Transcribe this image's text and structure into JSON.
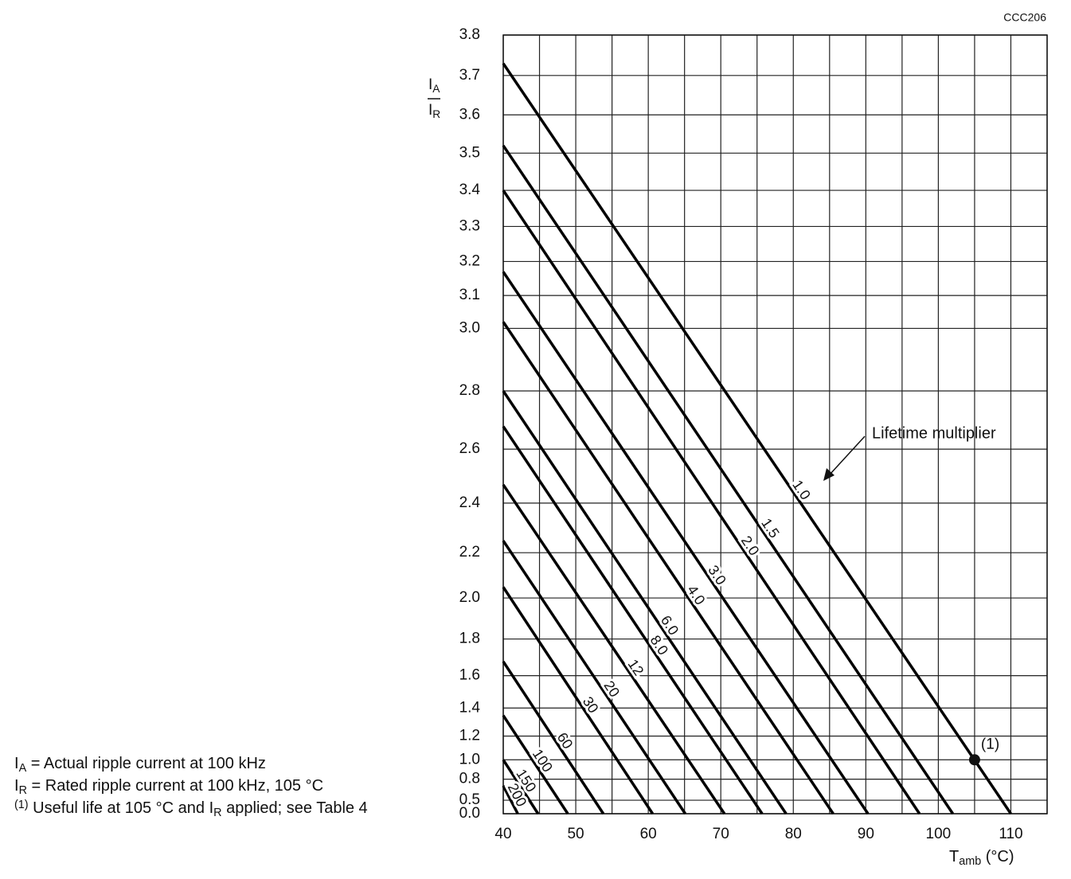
{
  "chart_data": {
    "type": "line",
    "code": "CCC206",
    "y_label": {
      "main": "I",
      "num_sub": "A",
      "den": "I",
      "den_sub": "R"
    },
    "x_label": {
      "main": "T",
      "sub": "amb",
      "unit": " (°C)"
    },
    "yscale": "squared",
    "xlim": [
      40,
      115
    ],
    "ylim": [
      0,
      3.8
    ],
    "xticks": [
      40,
      50,
      60,
      70,
      80,
      90,
      100,
      110
    ],
    "x_minor_grid": [
      45,
      55,
      65,
      75,
      85,
      95,
      105,
      115
    ],
    "yticks": [
      {
        "value": 0,
        "label": "0.0"
      },
      0.5,
      0.8,
      {
        "value": 1,
        "label": "1.0"
      },
      1.2,
      1.4,
      1.6,
      1.8,
      {
        "value": 2,
        "label": "2.0"
      },
      2.2,
      2.4,
      2.6,
      2.8,
      {
        "value": 3,
        "label": "3.0"
      },
      3.1,
      3.2,
      3.3,
      3.4,
      3.5,
      3.6,
      3.7,
      3.8
    ],
    "grid": true,
    "line_color": "#000000",
    "legend_title": "Lifetime multiplier",
    "series": [
      {
        "name": "1.0",
        "x": [
          40,
          110
        ],
        "values": [
          3.73,
          0
        ]
      },
      {
        "name": "1.5",
        "x": [
          40,
          102
        ],
        "values": [
          3.52,
          0
        ]
      },
      {
        "name": "2.0",
        "x": [
          40,
          97.4
        ],
        "values": [
          3.4,
          0
        ]
      },
      {
        "name": "3.0",
        "x": [
          40,
          90.3
        ],
        "values": [
          3.17,
          0
        ]
      },
      {
        "name": "4.0",
        "x": [
          40,
          85.5
        ],
        "values": [
          3.02,
          0
        ]
      },
      {
        "name": "6.0",
        "x": [
          40,
          79
        ],
        "values": [
          2.8,
          0
        ]
      },
      {
        "name": "8.0",
        "x": [
          40,
          75.7
        ],
        "values": [
          2.68,
          0
        ]
      },
      {
        "name": "12",
        "x": [
          40,
          70.5
        ],
        "values": [
          2.47,
          0
        ]
      },
      {
        "name": "20",
        "x": [
          40,
          65.1
        ],
        "values": [
          2.25,
          0
        ]
      },
      {
        "name": "30",
        "x": [
          40,
          60.6
        ],
        "values": [
          2.05,
          0
        ]
      },
      {
        "name": "60",
        "x": [
          40,
          53.8
        ],
        "values": [
          1.68,
          0
        ]
      },
      {
        "name": "100",
        "x": [
          40,
          48.9
        ],
        "values": [
          1.35,
          0
        ]
      },
      {
        "name": "150",
        "x": [
          40,
          44.8
        ],
        "values": [
          1.0,
          0
        ]
      },
      {
        "name": "200",
        "x": [
          40,
          42
        ],
        "values": [
          0.72,
          0
        ]
      }
    ],
    "marker": {
      "label": "(1)",
      "x": 105,
      "y": 1.0
    },
    "notes": [
      {
        "sym": "I",
        "sub": "A",
        "text": " = Actual ripple current at 100 kHz"
      },
      {
        "sym": "I",
        "sub": "R",
        "text": " = Rated ripple current at 100 kHz, 105 °C"
      },
      {
        "sup": "(1)",
        "text": " Useful life at 105 °C and ",
        "sym": "I",
        "sub": "R",
        "text2": " applied; see Table 4"
      }
    ]
  }
}
